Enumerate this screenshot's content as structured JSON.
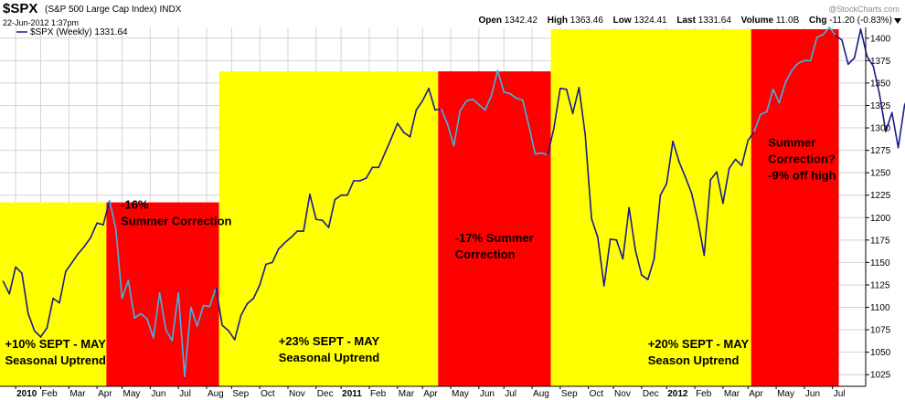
{
  "header": {
    "symbol": "$SPX",
    "name": "(S&P 500 Large Cap Index) INDX",
    "date": "22-Jun-2012 1:37pm",
    "site": "@StockCharts.com",
    "open_label": "Open",
    "open": "1342.42",
    "high_label": "High",
    "high": "1363.46",
    "low_label": "Low",
    "low": "1324.41",
    "last_label": "Last",
    "last": "1331.64",
    "volume_label": "Volume",
    "volume": "11.0B",
    "chg_label": "Chg",
    "chg": "-11.20 (-0.83%)"
  },
  "chart_data": {
    "type": "line",
    "legend": "$SPX (Weekly) 1331.64",
    "ylim": [
      1012,
      1412
    ],
    "yticks": [
      1025,
      1050,
      1075,
      1100,
      1125,
      1150,
      1175,
      1200,
      1225,
      1250,
      1275,
      1300,
      1325,
      1350,
      1375,
      1400
    ],
    "xticks": [
      {
        "label": "2010",
        "w": 0,
        "bold": true
      },
      {
        "label": "Feb",
        "w": 4
      },
      {
        "label": "Mar",
        "w": 8.5
      },
      {
        "label": "Apr",
        "w": 13
      },
      {
        "label": "May",
        "w": 17
      },
      {
        "label": "Jun",
        "w": 21.5
      },
      {
        "label": "Jul",
        "w": 26
      },
      {
        "label": "Aug",
        "w": 30.5
      },
      {
        "label": "Sep",
        "w": 34.5
      },
      {
        "label": "Oct",
        "w": 39
      },
      {
        "label": "Nov",
        "w": 43.5
      },
      {
        "label": "Dec",
        "w": 48
      },
      {
        "label": "2011",
        "w": 52,
        "bold": true
      },
      {
        "label": "Feb",
        "w": 56.5
      },
      {
        "label": "Mar",
        "w": 61
      },
      {
        "label": "Apr",
        "w": 65
      },
      {
        "label": "May",
        "w": 69.5
      },
      {
        "label": "Jun",
        "w": 74
      },
      {
        "label": "Jul",
        "w": 78
      },
      {
        "label": "Aug",
        "w": 82.5
      },
      {
        "label": "Sep",
        "w": 87
      },
      {
        "label": "Oct",
        "w": 91.5
      },
      {
        "label": "Nov",
        "w": 95.5
      },
      {
        "label": "Dec",
        "w": 100
      },
      {
        "label": "2012",
        "w": 104,
        "bold": true
      },
      {
        "label": "Feb",
        "w": 108.5
      },
      {
        "label": "Mar",
        "w": 113
      },
      {
        "label": "Apr",
        "w": 117
      },
      {
        "label": "May",
        "w": 121.5
      },
      {
        "label": "Jun",
        "w": 126
      },
      {
        "label": "Jul",
        "w": 130.5
      }
    ],
    "xdomain": [
      -2.5,
      135.8
    ],
    "zones": [
      {
        "type": "uptrend",
        "start_week": -2.5,
        "end_week": 14.5,
        "start_value": 1012,
        "end_value": 1217,
        "color": "#ffff00"
      },
      {
        "type": "correction",
        "start_week": 14.5,
        "end_week": 32.5,
        "start_value": 1012,
        "end_value": 1217,
        "color": "#ff0000"
      },
      {
        "type": "uptrend",
        "start_week": 32.5,
        "end_week": 67.5,
        "start_value": 1012,
        "end_value": 1363,
        "color": "#ffff00"
      },
      {
        "type": "correction",
        "start_week": 67.5,
        "end_week": 85.5,
        "start_value": 1012,
        "end_value": 1363,
        "color": "#ff0000"
      },
      {
        "type": "uptrend",
        "start_week": 85.5,
        "end_week": 117.5,
        "start_value": 1012,
        "end_value": 1410,
        "color": "#ffff00"
      },
      {
        "type": "correction",
        "start_week": 117.5,
        "end_week": 131.5,
        "start_value": 1012,
        "end_value": 1410,
        "color": "#ff0000"
      }
    ],
    "series": [
      {
        "start_week": -2,
        "values": [
          1129,
          1115,
          1145,
          1138,
          1093,
          1074,
          1067,
          1077,
          1110,
          1105,
          1140,
          1150,
          1160,
          1168,
          1178,
          1194,
          1192,
          1219,
          1188,
          1110,
          1130,
          1088,
          1093,
          1087,
          1066,
          1116,
          1075,
          1063,
          1116,
          1023,
          1100,
          1079,
          1102,
          1101,
          1122,
          1080,
          1074,
          1064,
          1091,
          1104,
          1110,
          1125,
          1148,
          1150,
          1165,
          1172,
          1178,
          1185,
          1185,
          1226,
          1198,
          1197,
          1189,
          1220,
          1225,
          1225,
          1241,
          1241,
          1244,
          1256,
          1256,
          1272,
          1288,
          1305,
          1295,
          1290,
          1320,
          1330,
          1344,
          1320,
          1321,
          1304,
          1280,
          1319,
          1330,
          1332,
          1326,
          1320,
          1336,
          1364,
          1340,
          1338,
          1333,
          1331,
          1302,
          1271,
          1272,
          1270,
          1300,
          1344,
          1343,
          1316,
          1345,
          1292,
          1199,
          1178,
          1124,
          1176,
          1175,
          1154,
          1211,
          1164,
          1136,
          1131,
          1154,
          1225,
          1238,
          1285,
          1262,
          1245,
          1227,
          1196,
          1158,
          1242,
          1251,
          1216,
          1255,
          1265,
          1258,
          1286,
          1296,
          1315,
          1318,
          1343,
          1328,
          1351,
          1364,
          1372,
          1375,
          1375,
          1401,
          1404,
          1412,
          1403,
          1398,
          1371,
          1378,
          1410,
          1380,
          1369,
          1338,
          1296,
          1317,
          1278,
          1325,
          1343,
          1332
        ]
      }
    ],
    "annotations": [
      {
        "lines": [
          "+10% SEPT - MAY",
          "Seasonal Uptrend"
        ],
        "week": -1.7,
        "value": 1055
      },
      {
        "lines": [
          "-16%",
          "Summer Correction"
        ],
        "week": 16.8,
        "value": 1210
      },
      {
        "lines": [
          "+23% SEPT - MAY",
          "Seasonal Uptrend"
        ],
        "week": 42,
        "value": 1058
      },
      {
        "lines": [
          "-17% Summer",
          "Correction"
        ],
        "week": 70.2,
        "value": 1173
      },
      {
        "lines": [
          "+20% SEPT - MAY",
          "Season Uptrend"
        ],
        "week": 101,
        "value": 1055
      },
      {
        "lines": [
          "Summer",
          "Correction?",
          "-9% off high"
        ],
        "week": 120.2,
        "value": 1279
      }
    ],
    "colors": {
      "line": "#1a1a8c",
      "line_light": "#3fb5e5",
      "grid": "#d4d4d4",
      "axis": "#000000"
    }
  }
}
